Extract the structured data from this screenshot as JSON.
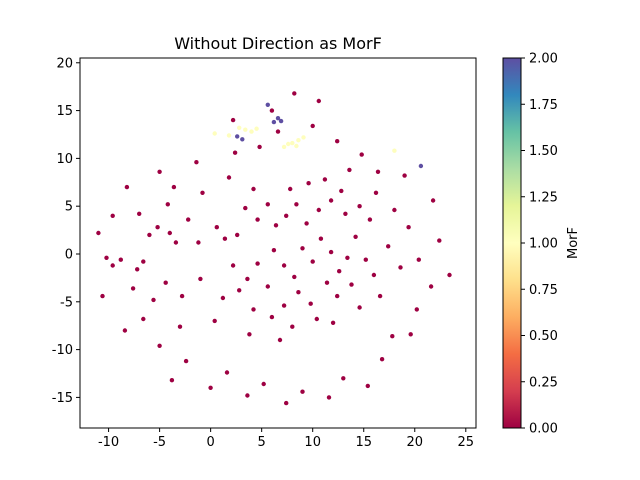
{
  "chart_data": {
    "type": "scatter",
    "title": "Without Direction as MorF",
    "xlabel": "",
    "ylabel": "",
    "xlim": [
      -12.8,
      26.0
    ],
    "ylim": [
      -18.2,
      20.5
    ],
    "x_ticks": [
      -10,
      -5,
      0,
      5,
      10,
      15,
      20,
      25
    ],
    "y_ticks": [
      -15,
      -10,
      -5,
      0,
      5,
      10,
      15,
      20
    ],
    "colorbar": {
      "label": "MorF",
      "range": [
        0.0,
        2.0
      ],
      "ticks": [
        "0.00",
        "0.25",
        "0.50",
        "0.75",
        "1.00",
        "1.25",
        "1.50",
        "1.75",
        "2.00"
      ],
      "colormap": "Spectral"
    },
    "series": [
      {
        "morf": 0,
        "color": "#9e0142",
        "points": [
          [
            -10.2,
            -0.4
          ],
          [
            -9.6,
            -1.2
          ],
          [
            -8.8,
            -0.6
          ],
          [
            -7.2,
            -1.6
          ],
          [
            -6.6,
            -0.8
          ],
          [
            -6.0,
            2.0
          ],
          [
            -5.2,
            2.8
          ],
          [
            -4.0,
            2.2
          ],
          [
            -3.4,
            1.2
          ],
          [
            -7.0,
            4.2
          ],
          [
            -4.2,
            5.2
          ],
          [
            -2.2,
            3.6
          ],
          [
            -1.2,
            1.2
          ],
          [
            0.6,
            2.8
          ],
          [
            1.4,
            1.6
          ],
          [
            2.6,
            2.0
          ],
          [
            2.2,
            -1.2
          ],
          [
            3.6,
            -2.6
          ],
          [
            4.6,
            -1.0
          ],
          [
            5.6,
            -3.4
          ],
          [
            6.2,
            0.4
          ],
          [
            7.2,
            -1.2
          ],
          [
            8.2,
            -2.4
          ],
          [
            9.0,
            0.6
          ],
          [
            10.0,
            -0.8
          ],
          [
            10.8,
            1.6
          ],
          [
            11.8,
            0.2
          ],
          [
            12.6,
            -1.8
          ],
          [
            13.4,
            -0.4
          ],
          [
            14.2,
            1.8
          ],
          [
            15.2,
            -0.6
          ],
          [
            16.0,
            -2.2
          ],
          [
            16.6,
            -4.4
          ],
          [
            15.6,
            3.6
          ],
          [
            14.6,
            5.0
          ],
          [
            13.2,
            4.2
          ],
          [
            11.8,
            5.6
          ],
          [
            10.6,
            4.6
          ],
          [
            9.4,
            3.2
          ],
          [
            8.4,
            5.2
          ],
          [
            7.4,
            4.0
          ],
          [
            6.4,
            3.0
          ],
          [
            5.6,
            5.2
          ],
          [
            4.6,
            3.6
          ],
          [
            3.4,
            4.8
          ],
          [
            7.8,
            6.8
          ],
          [
            9.6,
            7.4
          ],
          [
            11.2,
            7.8
          ],
          [
            12.8,
            6.6
          ],
          [
            4.2,
            6.8
          ],
          [
            8.6,
            -4.0
          ],
          [
            9.8,
            -5.2
          ],
          [
            11.4,
            -3.0
          ],
          [
            12.4,
            -4.4
          ],
          [
            13.8,
            -3.2
          ],
          [
            14.6,
            -5.6
          ],
          [
            7.2,
            -5.4
          ],
          [
            6.0,
            -6.6
          ],
          [
            4.2,
            -5.8
          ],
          [
            2.8,
            -3.8
          ],
          [
            1.2,
            -4.6
          ],
          [
            10.4,
            -6.8
          ],
          [
            12.0,
            -7.2
          ],
          [
            8.0,
            -7.6
          ],
          [
            6.8,
            -9.0
          ],
          [
            3.8,
            -8.4
          ],
          [
            0.4,
            -7.0
          ],
          [
            -1.0,
            -2.6
          ],
          [
            -2.8,
            -4.4
          ],
          [
            -4.4,
            -3.0
          ],
          [
            -5.6,
            -4.8
          ],
          [
            -7.6,
            -3.6
          ],
          [
            17.4,
            0.8
          ],
          [
            18.6,
            -1.4
          ],
          [
            19.4,
            2.8
          ],
          [
            20.4,
            -0.6
          ],
          [
            18.0,
            4.6
          ],
          [
            21.6,
            -3.4
          ],
          [
            20.2,
            -5.8
          ],
          [
            -8.4,
            -8.0
          ],
          [
            -5.0,
            -9.6
          ],
          [
            -2.4,
            -11.2
          ],
          [
            1.6,
            -12.4
          ],
          [
            5.2,
            -13.6
          ],
          [
            9.0,
            -14.4
          ],
          [
            13.0,
            -13.0
          ],
          [
            16.8,
            -11.0
          ],
          [
            19.6,
            -8.4
          ],
          [
            22.4,
            1.4
          ],
          [
            21.8,
            5.6
          ],
          [
            19.0,
            8.2
          ],
          [
            -9.6,
            4.0
          ],
          [
            -8.2,
            7.0
          ],
          [
            -5.0,
            8.6
          ],
          [
            -1.4,
            9.6
          ],
          [
            2.4,
            10.6
          ],
          [
            14.8,
            10.4
          ],
          [
            16.4,
            8.6
          ],
          [
            3.6,
            -14.8
          ],
          [
            7.4,
            -15.6
          ],
          [
            11.6,
            -15.0
          ],
          [
            -3.8,
            -13.2
          ],
          [
            0.0,
            -14.0
          ],
          [
            15.4,
            -13.8
          ],
          [
            23.4,
            -2.2
          ],
          [
            -11.0,
            2.2
          ],
          [
            -10.6,
            -4.4
          ],
          [
            6.6,
            12.8
          ],
          [
            10.0,
            13.4
          ],
          [
            12.4,
            11.8
          ],
          [
            4.8,
            11.2
          ],
          [
            8.2,
            16.8
          ],
          [
            6.0,
            15.0
          ],
          [
            10.6,
            16.0
          ],
          [
            2.2,
            14.0
          ],
          [
            -3.0,
            -7.6
          ],
          [
            -6.6,
            -6.8
          ],
          [
            16.2,
            6.4
          ],
          [
            17.8,
            -8.6
          ],
          [
            13.6,
            8.8
          ],
          [
            1.8,
            8.0
          ],
          [
            -0.8,
            6.4
          ],
          [
            -3.6,
            7.0
          ]
        ]
      },
      {
        "morf": 1,
        "color": "#fefebd",
        "points": [
          [
            7.2,
            11.2
          ],
          [
            8.0,
            11.6
          ],
          [
            8.6,
            11.9
          ],
          [
            9.1,
            12.2
          ],
          [
            7.6,
            11.5
          ],
          [
            8.4,
            11.3
          ],
          [
            2.8,
            13.2
          ],
          [
            3.4,
            13.0
          ],
          [
            4.0,
            12.8
          ],
          [
            4.5,
            13.1
          ],
          [
            1.8,
            12.4
          ],
          [
            0.4,
            12.6
          ],
          [
            18.0,
            10.8
          ]
        ]
      },
      {
        "morf": 2,
        "color": "#5e4fa2",
        "points": [
          [
            6.2,
            13.8
          ],
          [
            6.6,
            14.2
          ],
          [
            6.9,
            13.9
          ],
          [
            2.6,
            12.3
          ],
          [
            3.1,
            12.0
          ],
          [
            5.6,
            15.6
          ],
          [
            20.6,
            9.2
          ]
        ]
      }
    ]
  }
}
